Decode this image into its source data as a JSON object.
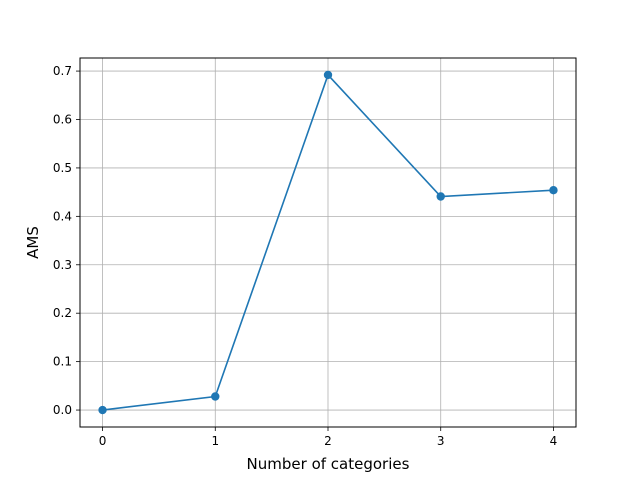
{
  "chart_data": {
    "type": "line",
    "title": "",
    "xlabel": "Number of categories",
    "ylabel": "AMS",
    "x": [
      0,
      1,
      2,
      3,
      4
    ],
    "series": [
      {
        "values": [
          0.0,
          0.028,
          0.692,
          0.441,
          0.454
        ]
      }
    ],
    "xlim": [
      -0.2,
      4.2
    ],
    "ylim": [
      -0.035,
      0.727
    ],
    "xticks": [
      0,
      1,
      2,
      3,
      4
    ],
    "xtick_labels": [
      "0",
      "1",
      "2",
      "3",
      "4"
    ],
    "yticks": [
      0.0,
      0.1,
      0.2,
      0.3,
      0.4,
      0.5,
      0.6,
      0.7
    ],
    "ytick_labels": [
      "0.0",
      "0.1",
      "0.2",
      "0.3",
      "0.4",
      "0.5",
      "0.6",
      "0.7"
    ],
    "grid": true,
    "marker": "circle",
    "line_color": "#1f77b4",
    "grid_color": "#b0b0b0"
  }
}
